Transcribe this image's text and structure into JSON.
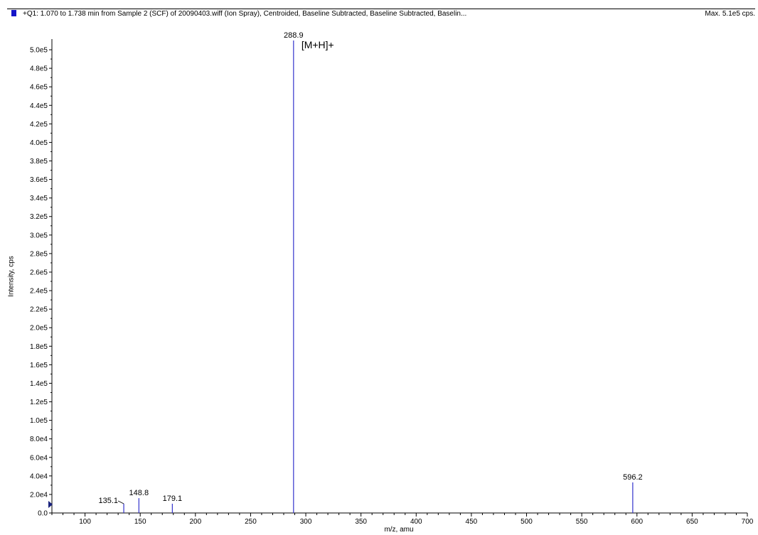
{
  "header": {
    "title": "+Q1: 1.070 to 1.738 min from Sample 2 (SCF) of 20090403.wiff (Ion Spray), Centroided, Baseline Subtracted, Baseline Subtracted, Baselin...",
    "max": "Max. 5.1e5 cps.",
    "swatch_color": "#1414c8"
  },
  "chart_data": {
    "type": "bar",
    "xlabel": "m/z, amu",
    "ylabel": "Intensity, cps",
    "xlim": [
      70,
      700
    ],
    "ylim": [
      0,
      510000
    ],
    "grid": false,
    "line_color": "#3333cc",
    "x_ticks": [
      100,
      150,
      200,
      250,
      300,
      350,
      400,
      450,
      500,
      550,
      600,
      650,
      700
    ],
    "y_ticks": [
      {
        "value": 0,
        "label": "0.0"
      },
      {
        "value": 20000,
        "label": "2.0e4"
      },
      {
        "value": 40000,
        "label": "4.0e4"
      },
      {
        "value": 60000,
        "label": "6.0e4"
      },
      {
        "value": 80000,
        "label": "8.0e4"
      },
      {
        "value": 100000,
        "label": "1.0e5"
      },
      {
        "value": 120000,
        "label": "1.2e5"
      },
      {
        "value": 140000,
        "label": "1.4e5"
      },
      {
        "value": 160000,
        "label": "1.6e5"
      },
      {
        "value": 180000,
        "label": "1.8e5"
      },
      {
        "value": 200000,
        "label": "2.0e5"
      },
      {
        "value": 220000,
        "label": "2.2e5"
      },
      {
        "value": 240000,
        "label": "2.4e5"
      },
      {
        "value": 260000,
        "label": "2.6e5"
      },
      {
        "value": 280000,
        "label": "2.8e5"
      },
      {
        "value": 300000,
        "label": "3.0e5"
      },
      {
        "value": 320000,
        "label": "3.2e5"
      },
      {
        "value": 340000,
        "label": "3.4e5"
      },
      {
        "value": 360000,
        "label": "3.6e5"
      },
      {
        "value": 380000,
        "label": "3.8e5"
      },
      {
        "value": 400000,
        "label": "4.0e5"
      },
      {
        "value": 420000,
        "label": "4.2e5"
      },
      {
        "value": 440000,
        "label": "4.4e5"
      },
      {
        "value": 460000,
        "label": "4.6e5"
      },
      {
        "value": 480000,
        "label": "4.8e5"
      },
      {
        "value": 500000,
        "label": "5.0e5"
      }
    ],
    "peaks": [
      {
        "mz": 135.1,
        "intensity": 10000,
        "label": "135.1",
        "label_side": "left"
      },
      {
        "mz": 148.8,
        "intensity": 16000,
        "label": "148.8",
        "label_side": "above"
      },
      {
        "mz": 179.1,
        "intensity": 10000,
        "label": "179.1",
        "label_side": "above"
      },
      {
        "mz": 288.9,
        "intensity": 510000,
        "label": "288.9",
        "label_side": "above"
      },
      {
        "mz": 596.2,
        "intensity": 33000,
        "label": "596.2",
        "label_side": "above"
      }
    ],
    "annotations": [
      {
        "text": "[M+H]+",
        "mz": 288.9
      }
    ]
  }
}
